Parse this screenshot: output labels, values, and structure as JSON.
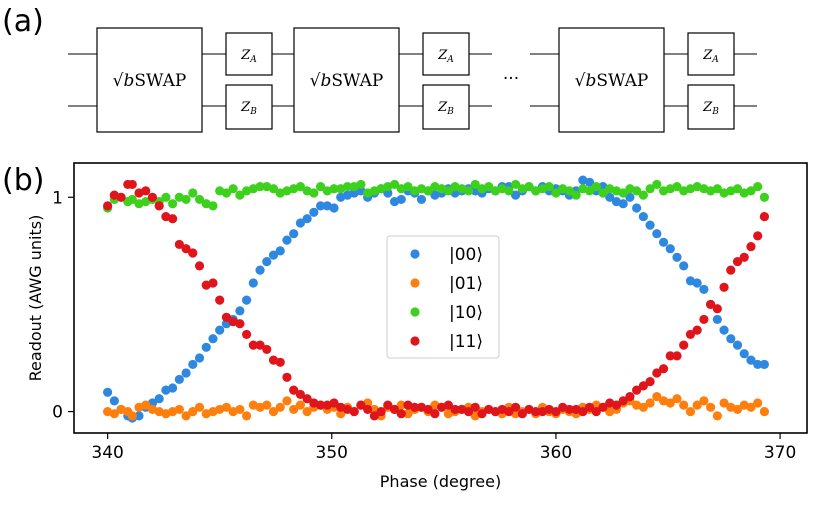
{
  "panel_a": {
    "label": "(a)",
    "gate_label_prefix": "√",
    "gate_label_b": "b",
    "gate_label_rest": "SWAP",
    "za_symbol": "Z",
    "za_sub": "A",
    "zb_symbol": "Z",
    "zb_sub": "B",
    "ellipsis": "···"
  },
  "panel_b": {
    "label": "(b)"
  },
  "colors": {
    "s00": "#2f88e0",
    "s01": "#ff7f0e",
    "s10": "#3dd11e",
    "s11": "#e0141b"
  },
  "chart_data": {
    "type": "scatter",
    "xlabel": "Phase (degree)",
    "ylabel": "Readout (AWG units)",
    "xlim": [
      338.5,
      371.2
    ],
    "ylim": [
      -0.1,
      1.16
    ],
    "xticks": [
      340,
      350,
      360,
      370
    ],
    "yticks": [
      0,
      1
    ],
    "legend_position": "center",
    "series": [
      {
        "name": "|00⟩",
        "color_key": "s00",
        "x": [
          340.0,
          340.3,
          340.6,
          340.9,
          341.1,
          341.4,
          341.7,
          342.0,
          342.3,
          342.6,
          342.9,
          343.2,
          343.5,
          343.8,
          344.1,
          344.4,
          344.7,
          345.0,
          345.3,
          345.6,
          345.9,
          346.2,
          346.5,
          346.8,
          347.1,
          347.4,
          347.7,
          348.0,
          348.3,
          348.6,
          348.9,
          349.2,
          349.5,
          349.8,
          350.1,
          350.4,
          350.7,
          351.0,
          351.3,
          351.6,
          351.9,
          352.2,
          352.5,
          352.8,
          353.1,
          353.4,
          353.7,
          354.0,
          354.3,
          354.6,
          354.9,
          355.2,
          355.5,
          355.8,
          356.1,
          356.4,
          356.7,
          357.0,
          357.3,
          357.6,
          357.9,
          358.2,
          358.5,
          358.8,
          359.1,
          359.4,
          359.7,
          360.0,
          360.3,
          360.6,
          360.9,
          361.2,
          361.5,
          361.8,
          362.1,
          362.4,
          362.7,
          363.0,
          363.3,
          363.6,
          363.9,
          364.2,
          364.5,
          364.8,
          365.1,
          365.4,
          365.7,
          366.0,
          366.3,
          366.6,
          366.9,
          367.2,
          367.5,
          367.8,
          368.1,
          368.4,
          368.7,
          369.0,
          369.3
        ],
        "values": [
          0.09,
          0.05,
          0.01,
          -0.02,
          -0.03,
          -0.02,
          0.02,
          0.04,
          0.06,
          0.1,
          0.11,
          0.15,
          0.18,
          0.22,
          0.25,
          0.3,
          0.34,
          0.38,
          0.41,
          0.43,
          0.47,
          0.52,
          0.6,
          0.66,
          0.7,
          0.73,
          0.75,
          0.8,
          0.83,
          0.88,
          0.9,
          0.93,
          0.96,
          0.96,
          0.95,
          1.0,
          1.01,
          1.02,
          1.03,
          1.0,
          1.02,
          1.04,
          1.02,
          0.98,
          0.99,
          1.03,
          1.02,
          0.99,
          1.03,
          1.01,
          1.02,
          1.04,
          1.02,
          1.03,
          1.04,
          1.03,
          1.02,
          1.04,
          1.03,
          1.05,
          1.05,
          1.01,
          1.03,
          1.05,
          1.03,
          1.05,
          1.03,
          1.04,
          1.03,
          1.01,
          1.03,
          1.08,
          1.07,
          1.03,
          1.05,
          1.0,
          0.98,
          0.97,
          1.0,
          0.95,
          0.91,
          0.87,
          0.83,
          0.79,
          0.76,
          0.72,
          0.68,
          0.61,
          0.6,
          0.57,
          0.5,
          0.43,
          0.38,
          0.34,
          0.31,
          0.27,
          0.24,
          0.22,
          0.22
        ]
      },
      {
        "name": "|01⟩",
        "color_key": "s01",
        "x": [
          340.0,
          340.3,
          340.6,
          340.9,
          341.1,
          341.4,
          341.7,
          342.0,
          342.3,
          342.6,
          342.9,
          343.2,
          343.5,
          343.8,
          344.1,
          344.4,
          344.7,
          345.0,
          345.3,
          345.6,
          345.9,
          346.2,
          346.5,
          346.8,
          347.1,
          347.4,
          347.7,
          348.0,
          348.3,
          348.6,
          348.9,
          349.2,
          349.5,
          349.8,
          350.1,
          350.4,
          350.7,
          351.0,
          351.3,
          351.6,
          351.9,
          352.2,
          352.5,
          352.8,
          353.1,
          353.4,
          353.7,
          354.0,
          354.3,
          354.6,
          354.9,
          355.2,
          355.5,
          355.8,
          356.1,
          356.4,
          356.7,
          357.0,
          357.3,
          357.6,
          357.9,
          358.2,
          358.5,
          358.8,
          359.1,
          359.4,
          359.7,
          360.0,
          360.3,
          360.6,
          360.9,
          361.2,
          361.5,
          361.8,
          362.1,
          362.4,
          362.7,
          363.0,
          363.3,
          363.6,
          363.9,
          364.2,
          364.5,
          364.8,
          365.1,
          365.4,
          365.7,
          366.0,
          366.3,
          366.6,
          366.9,
          367.2,
          367.5,
          367.8,
          368.1,
          368.4,
          368.7,
          369.0,
          369.3
        ],
        "values": [
          0.0,
          -0.01,
          0.01,
          0.0,
          -0.02,
          0.02,
          0.03,
          0.01,
          0.0,
          -0.01,
          0.0,
          0.01,
          -0.02,
          0.0,
          0.02,
          -0.01,
          0.0,
          0.01,
          0.02,
          0.0,
          0.01,
          -0.02,
          0.03,
          0.02,
          0.03,
          0.0,
          0.02,
          0.05,
          0.01,
          0.03,
          0.0,
          0.02,
          0.03,
          0.01,
          0.02,
          -0.01,
          0.02,
          0.0,
          0.03,
          0.04,
          0.01,
          -0.02,
          0.02,
          0.01,
          0.03,
          -0.01,
          0.01,
          0.02,
          0.0,
          0.03,
          0.02,
          -0.01,
          0.0,
          0.01,
          0.02,
          -0.02,
          0.0,
          0.01,
          0.0,
          -0.01,
          0.02,
          -0.01,
          0.0,
          0.01,
          -0.01,
          0.02,
          0.0,
          -0.01,
          0.01,
          0.0,
          -0.01,
          0.02,
          0.01,
          0.03,
          0.02,
          0.0,
          0.01,
          0.04,
          0.05,
          0.03,
          0.02,
          0.04,
          0.07,
          0.05,
          0.04,
          0.06,
          0.03,
          0.0,
          0.03,
          0.05,
          0.02,
          -0.02,
          0.04,
          0.02,
          0.01,
          0.03,
          0.02,
          0.04,
          0.0
        ]
      },
      {
        "name": "|10⟩",
        "color_key": "s10",
        "x": [
          340.0,
          340.3,
          340.6,
          340.9,
          341.1,
          341.4,
          341.7,
          342.0,
          342.3,
          342.6,
          342.9,
          343.2,
          343.5,
          343.8,
          344.1,
          344.4,
          344.7,
          345.0,
          345.3,
          345.6,
          345.9,
          346.2,
          346.5,
          346.8,
          347.1,
          347.4,
          347.7,
          348.0,
          348.3,
          348.6,
          348.9,
          349.2,
          349.5,
          349.8,
          350.1,
          350.4,
          350.7,
          351.0,
          351.3,
          351.6,
          351.9,
          352.2,
          352.5,
          352.8,
          353.1,
          353.4,
          353.7,
          354.0,
          354.3,
          354.6,
          354.9,
          355.2,
          355.5,
          355.8,
          356.1,
          356.4,
          356.7,
          357.0,
          357.3,
          357.6,
          357.9,
          358.2,
          358.5,
          358.8,
          359.1,
          359.4,
          359.7,
          360.0,
          360.3,
          360.6,
          360.9,
          361.2,
          361.5,
          361.8,
          362.1,
          362.4,
          362.7,
          363.0,
          363.3,
          363.6,
          363.9,
          364.2,
          364.5,
          364.8,
          365.1,
          365.4,
          365.7,
          366.0,
          366.3,
          366.6,
          366.9,
          367.2,
          367.5,
          367.8,
          368.1,
          368.4,
          368.7,
          369.0,
          369.3
        ],
        "values": [
          0.95,
          0.99,
          1.0,
          0.98,
          0.99,
          0.97,
          0.98,
          0.99,
          0.98,
          1.0,
          0.97,
          1.0,
          0.99,
          1.02,
          0.99,
          0.97,
          0.96,
          1.03,
          1.02,
          1.04,
          1.01,
          1.03,
          1.04,
          1.05,
          1.05,
          1.04,
          1.02,
          1.03,
          1.04,
          1.05,
          1.03,
          1.02,
          1.05,
          1.03,
          1.04,
          1.04,
          1.05,
          1.05,
          1.06,
          1.02,
          1.03,
          1.04,
          1.05,
          1.06,
          1.04,
          1.05,
          1.03,
          1.04,
          1.03,
          1.05,
          1.04,
          1.03,
          1.05,
          1.04,
          1.03,
          1.06,
          1.04,
          1.05,
          1.03,
          1.04,
          1.03,
          1.06,
          1.04,
          1.05,
          1.03,
          1.04,
          1.05,
          1.02,
          1.04,
          1.03,
          1.01,
          1.04,
          1.03,
          1.05,
          1.02,
          1.04,
          1.03,
          1.02,
          1.04,
          1.03,
          1.01,
          1.04,
          1.06,
          1.03,
          1.04,
          1.05,
          1.03,
          1.04,
          1.05,
          1.04,
          1.03,
          1.04,
          1.02,
          1.03,
          1.04,
          1.02,
          1.03,
          1.05,
          1.0
        ]
      },
      {
        "name": "|11⟩",
        "color_key": "s11",
        "x": [
          340.0,
          340.3,
          340.6,
          340.9,
          341.1,
          341.4,
          341.7,
          342.0,
          342.3,
          342.6,
          342.9,
          343.2,
          343.5,
          343.8,
          344.1,
          344.4,
          344.7,
          345.0,
          345.3,
          345.6,
          345.9,
          346.2,
          346.5,
          346.8,
          347.1,
          347.4,
          347.7,
          348.0,
          348.3,
          348.6,
          348.9,
          349.2,
          349.5,
          349.8,
          350.1,
          350.4,
          350.7,
          351.0,
          351.3,
          351.6,
          351.9,
          352.2,
          352.5,
          352.8,
          353.1,
          353.4,
          353.7,
          354.0,
          354.3,
          354.6,
          354.9,
          355.2,
          355.5,
          355.8,
          356.1,
          356.4,
          356.7,
          357.0,
          357.3,
          357.6,
          357.9,
          358.2,
          358.5,
          358.8,
          359.1,
          359.4,
          359.7,
          360.0,
          360.3,
          360.6,
          360.9,
          361.2,
          361.5,
          361.8,
          362.1,
          362.4,
          362.7,
          363.0,
          363.3,
          363.6,
          363.9,
          364.2,
          364.5,
          364.8,
          365.1,
          365.4,
          365.7,
          366.0,
          366.3,
          366.6,
          366.9,
          367.2,
          367.5,
          367.8,
          368.1,
          368.4,
          368.7,
          369.0,
          369.3
        ],
        "values": [
          0.96,
          1.01,
          1.0,
          1.06,
          1.06,
          1.02,
          1.03,
          1.0,
          0.96,
          0.91,
          0.9,
          0.78,
          0.76,
          0.74,
          0.68,
          0.59,
          0.6,
          0.52,
          0.44,
          0.42,
          0.41,
          0.36,
          0.31,
          0.31,
          0.29,
          0.24,
          0.23,
          0.16,
          0.1,
          0.08,
          0.06,
          0.04,
          0.03,
          0.03,
          0.04,
          0.02,
          0.01,
          0.0,
          0.03,
          0.01,
          -0.02,
          0.0,
          0.03,
          0.01,
          -0.01,
          0.03,
          0.02,
          0.02,
          0.01,
          -0.01,
          0.02,
          0.03,
          0.01,
          0.01,
          0.0,
          0.02,
          -0.01,
          0.01,
          0.0,
          0.01,
          0.0,
          0.02,
          -0.01,
          0.01,
          0.0,
          0.0,
          0.01,
          0.0,
          0.02,
          0.01,
          0.01,
          0.0,
          0.02,
          0.0,
          0.02,
          0.04,
          0.03,
          0.05,
          0.07,
          0.1,
          0.12,
          0.14,
          0.18,
          0.2,
          0.26,
          0.26,
          0.31,
          0.36,
          0.38,
          0.43,
          0.5,
          0.48,
          0.58,
          0.66,
          0.7,
          0.72,
          0.77,
          0.82,
          0.91
        ]
      }
    ]
  }
}
